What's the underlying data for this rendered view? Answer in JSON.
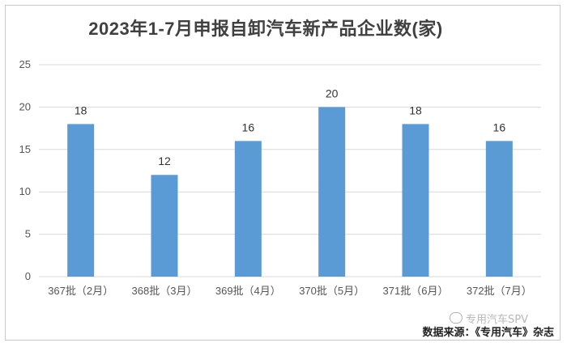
{
  "chart_data": {
    "type": "bar",
    "title": "2023年1-7月申报自卸汽车新产品企业数(家)",
    "categories": [
      "367批（2月）",
      "368批（3月）",
      "369批（4月）",
      "370批（5月）",
      "371批（6月）",
      "372批（7月）"
    ],
    "values": [
      18,
      12,
      16,
      20,
      18,
      16
    ],
    "yticks": [
      "0",
      "5",
      "10",
      "15",
      "20",
      "25"
    ],
    "ylim": [
      0,
      25
    ],
    "grid": true,
    "legend": "none",
    "bar_color": "#5b9bd5"
  },
  "source_text": "数据来源：《专用汽车》杂志",
  "watermark_text": "专用汽车SPV"
}
